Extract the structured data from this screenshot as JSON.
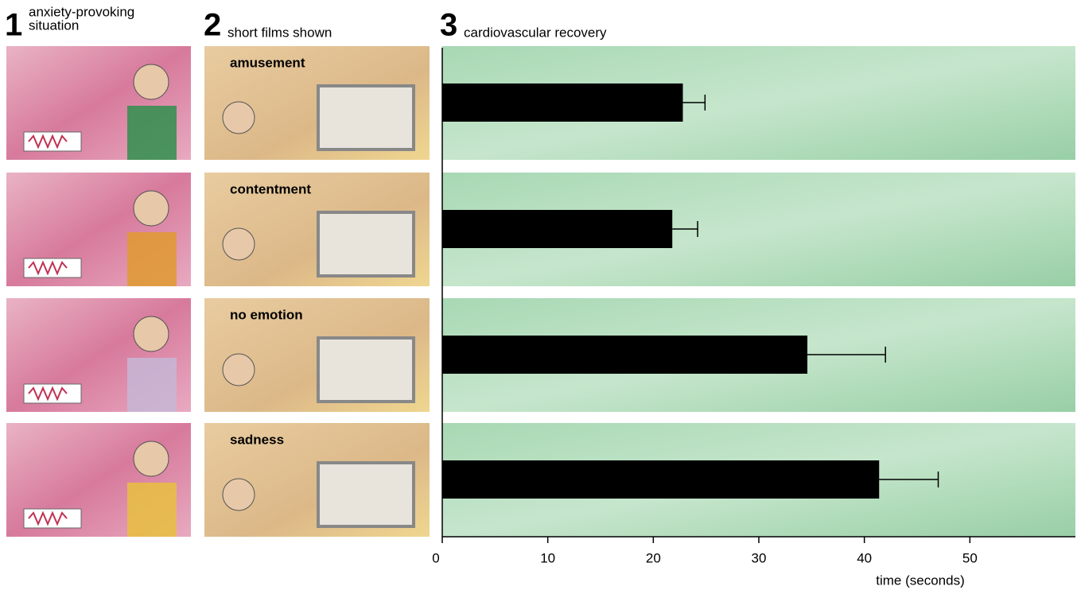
{
  "chart_data": {
    "type": "bar",
    "orientation": "horizontal",
    "headings": [
      {
        "number": "1",
        "lines": [
          "anxiety-provoking",
          "situation"
        ]
      },
      {
        "number": "2",
        "lines": [
          "short films shown"
        ]
      },
      {
        "number": "3",
        "lines": [
          "cardiovascular recovery"
        ]
      }
    ],
    "categories": [
      "amusement",
      "contentment",
      "no emotion",
      "sadness"
    ],
    "values": [
      22.8,
      21.8,
      34.6,
      41.4
    ],
    "errors": [
      2.1,
      2.4,
      7.4,
      5.6
    ],
    "color": "#000000",
    "xlabel": "time (seconds)",
    "xlim": [
      0,
      60
    ],
    "xticks": [
      0,
      10,
      20,
      30,
      40,
      50
    ]
  }
}
